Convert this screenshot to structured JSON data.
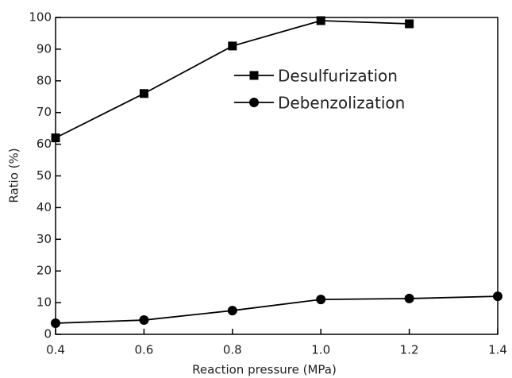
{
  "chart_data": {
    "type": "line",
    "xlabel": "Reaction pressure (MPa)",
    "ylabel": "Ratio (%)",
    "x": [
      0.4,
      0.6,
      0.8,
      1.0,
      1.2,
      1.4
    ],
    "series": [
      {
        "name": "Desulfurization",
        "color": "#000000",
        "marker": "square",
        "values": [
          62,
          76,
          91,
          99,
          98,
          null
        ]
      },
      {
        "name": "Debenzolization",
        "color": "#000000",
        "marker": "circle",
        "values": [
          3.5,
          4.5,
          7.5,
          11,
          11.3,
          12
        ]
      }
    ],
    "xlim": [
      0.4,
      1.4
    ],
    "xticks": [
      0.4,
      0.6,
      0.8,
      {
        "value": 1.0,
        "label": "1.0"
      },
      1.2,
      1.4
    ],
    "ylim": [
      0,
      100
    ],
    "yticks": [
      0,
      10,
      20,
      30,
      40,
      50,
      60,
      70,
      80,
      90,
      100
    ],
    "grid": false
  }
}
